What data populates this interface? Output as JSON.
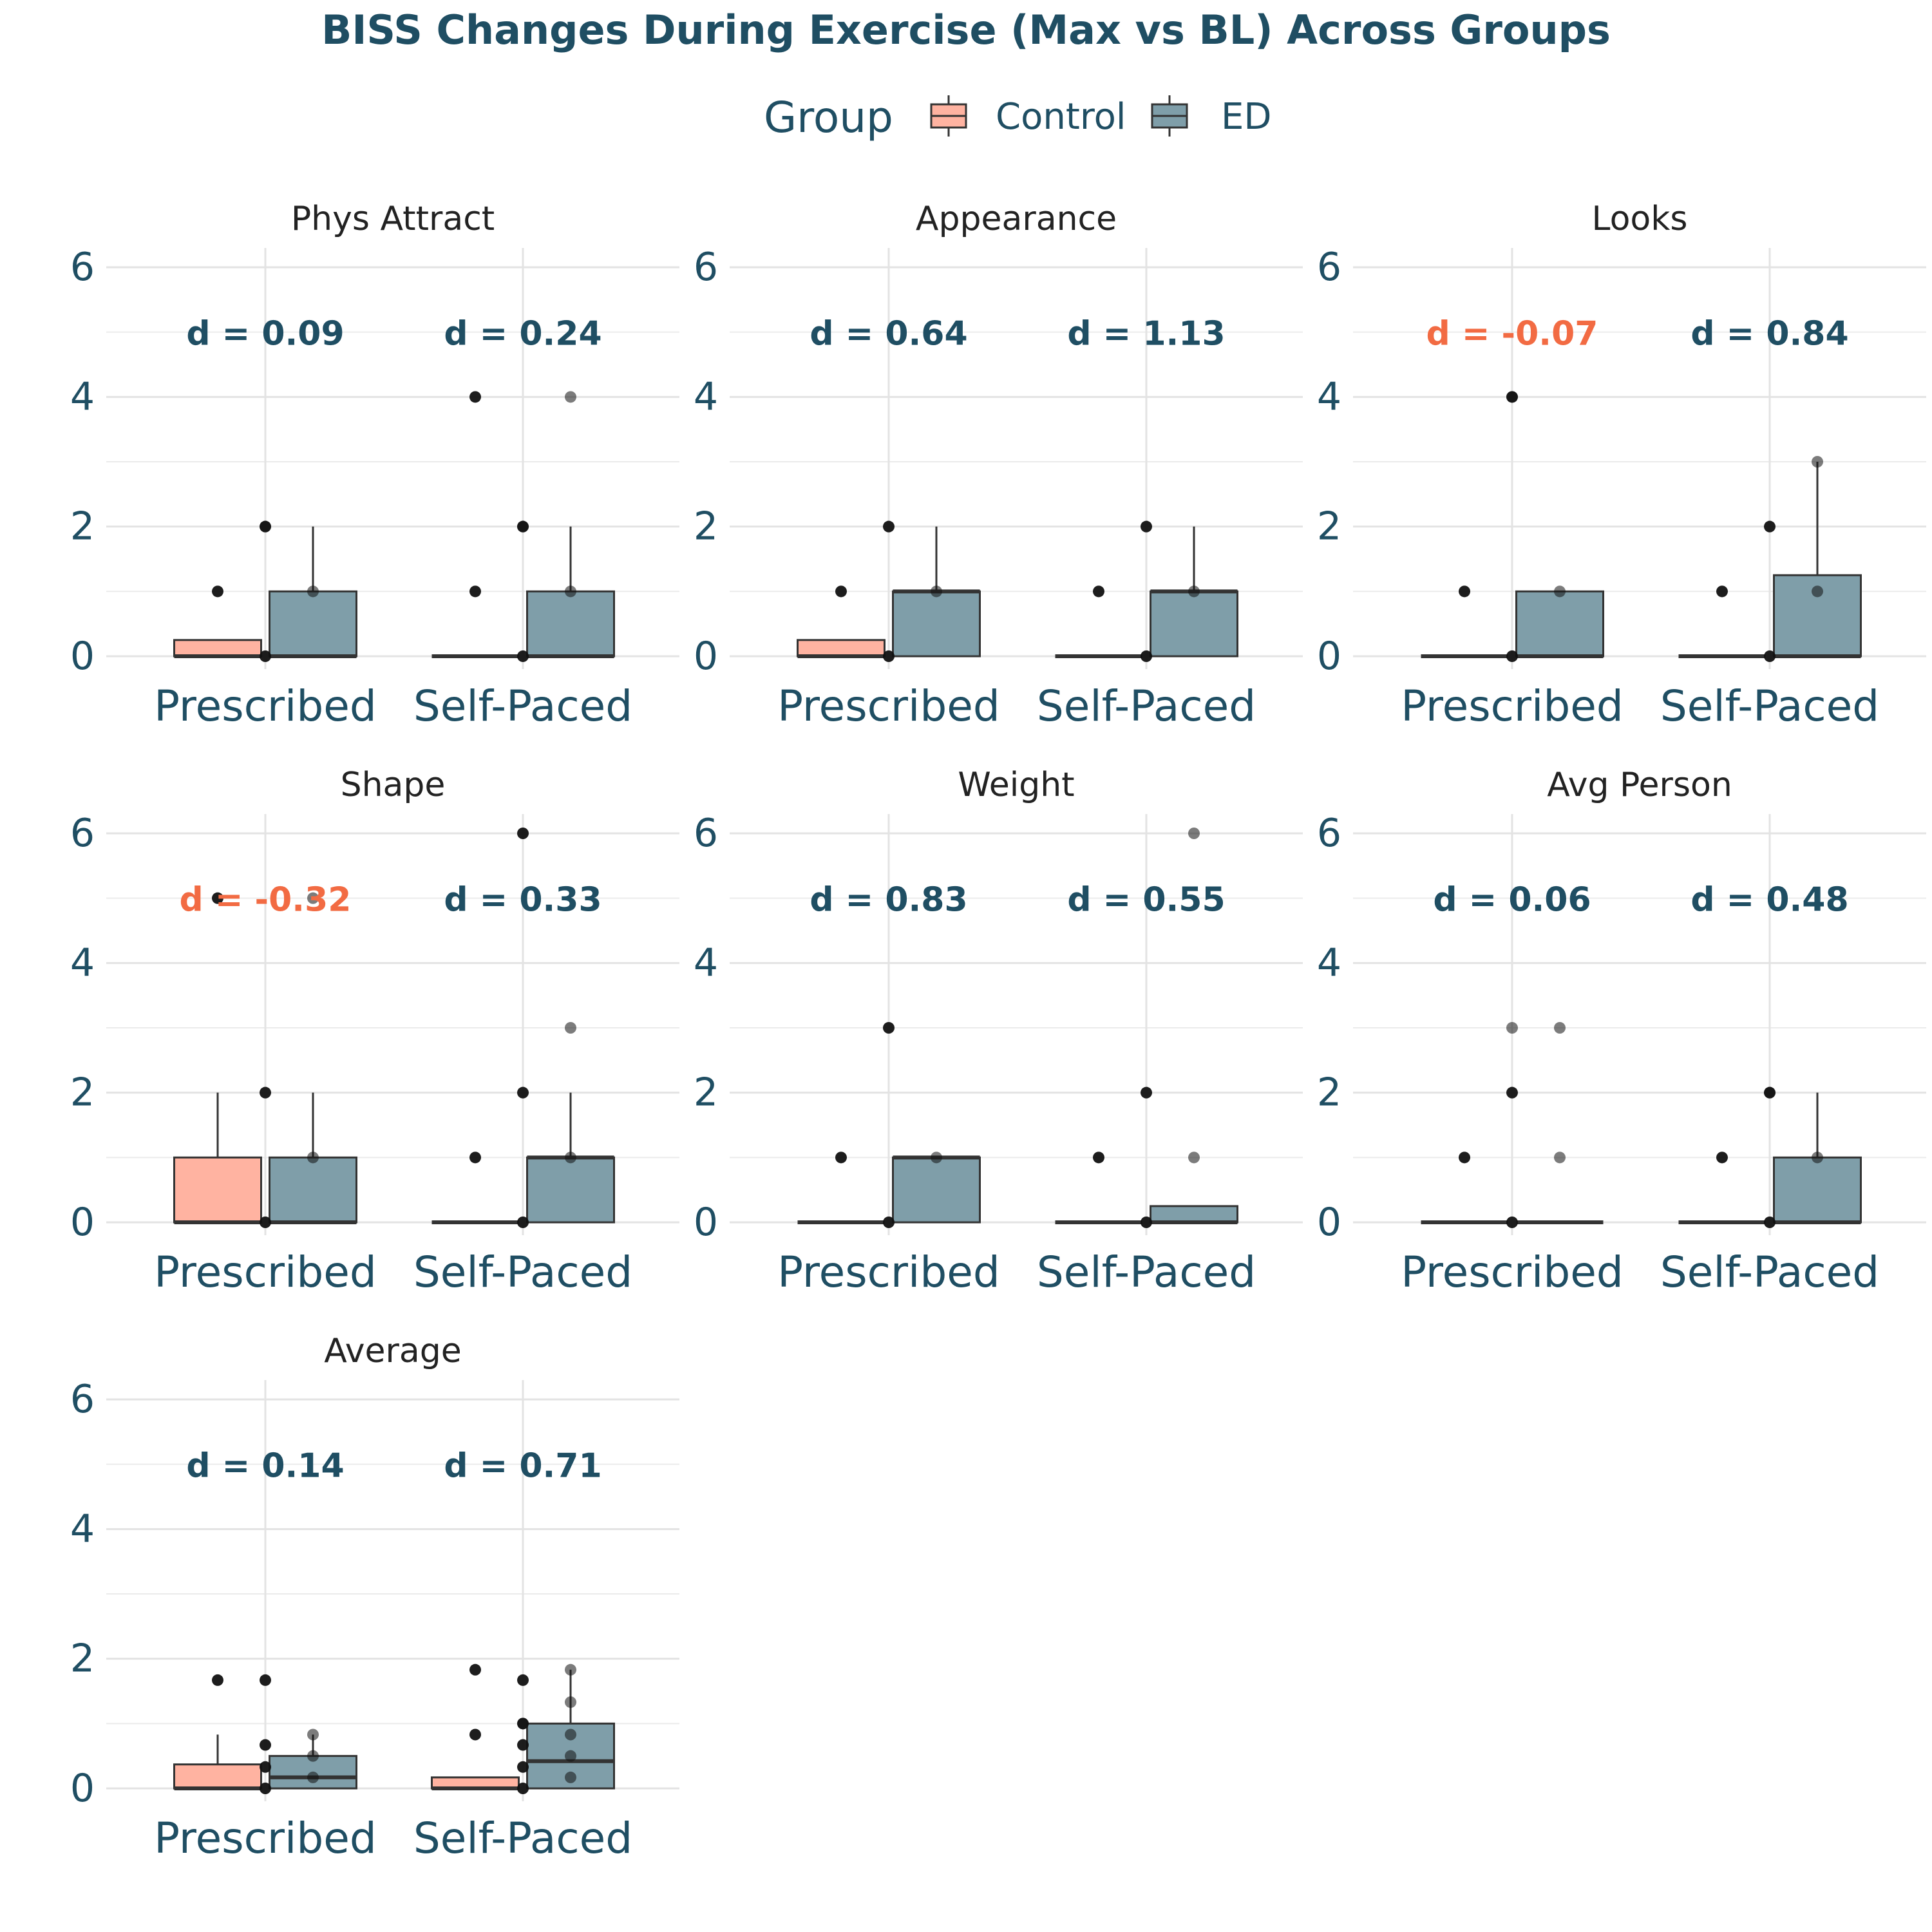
{
  "chart_data": {
    "type": "box",
    "title": "BISS Changes During Exercise (Max vs BL) Across Groups",
    "legend": {
      "title": "Group",
      "position": "top",
      "entries": [
        {
          "name": "Control",
          "color": "#f26b43"
        },
        {
          "name": "ED",
          "color": "#1f4e63"
        }
      ]
    },
    "categories": [
      "Prescribed",
      "Self-Paced"
    ],
    "ylim": [
      0,
      6
    ],
    "yticks": [
      "0",
      "2",
      "4",
      "6"
    ],
    "grid": true,
    "colors": {
      "control_fill": "#ffb3a1",
      "ed_fill": "#7f9ea9",
      "positive_label": "#1f4e63",
      "negative_label": "#f26b43",
      "box_stroke": "#333333",
      "point": "#111111"
    },
    "panels": [
      {
        "name": "Phys Attract",
        "effects": [
          {
            "label": "d = 0.09",
            "value": 0.09
          },
          {
            "label": "d = 0.24",
            "value": 0.24
          }
        ],
        "boxes": [
          {
            "category": "Prescribed",
            "group": "Control",
            "q1": 0,
            "median": 0,
            "q3": 0.25,
            "whisker_low": 0,
            "whisker_high": 0.25,
            "points": [
              1,
              2
            ]
          },
          {
            "category": "Prescribed",
            "group": "ED",
            "q1": 0,
            "median": 0,
            "q3": 1,
            "whisker_low": 0,
            "whisker_high": 2,
            "points": [
              0,
              1,
              2
            ]
          },
          {
            "category": "Self-Paced",
            "group": "Control",
            "q1": 0,
            "median": 0,
            "q3": 0,
            "whisker_low": 0,
            "whisker_high": 0,
            "points": [
              1,
              2,
              4
            ]
          },
          {
            "category": "Self-Paced",
            "group": "ED",
            "q1": 0,
            "median": 0,
            "q3": 1,
            "whisker_low": 0,
            "whisker_high": 2,
            "points": [
              0,
              1,
              2,
              4
            ]
          }
        ]
      },
      {
        "name": "Appearance",
        "effects": [
          {
            "label": "d = 0.64",
            "value": 0.64
          },
          {
            "label": "d = 1.13",
            "value": 1.13
          }
        ],
        "boxes": [
          {
            "category": "Prescribed",
            "group": "Control",
            "q1": 0,
            "median": 0,
            "q3": 0.25,
            "whisker_low": 0,
            "whisker_high": 0.25,
            "points": [
              1
            ]
          },
          {
            "category": "Prescribed",
            "group": "ED",
            "q1": 0,
            "median": 1,
            "q3": 1,
            "whisker_low": 0,
            "whisker_high": 2,
            "points": [
              0,
              1,
              2
            ]
          },
          {
            "category": "Self-Paced",
            "group": "Control",
            "q1": 0,
            "median": 0,
            "q3": 0,
            "whisker_low": 0,
            "whisker_high": 0,
            "points": [
              1
            ]
          },
          {
            "category": "Self-Paced",
            "group": "ED",
            "q1": 0,
            "median": 1,
            "q3": 1,
            "whisker_low": 0,
            "whisker_high": 2,
            "points": [
              0,
              1,
              2
            ]
          }
        ]
      },
      {
        "name": "Looks",
        "effects": [
          {
            "label": "d = -0.07",
            "value": -0.07
          },
          {
            "label": "d = 0.84",
            "value": 0.84
          }
        ],
        "boxes": [
          {
            "category": "Prescribed",
            "group": "Control",
            "q1": 0,
            "median": 0,
            "q3": 0,
            "whisker_low": 0,
            "whisker_high": 0,
            "points": [
              1,
              4
            ]
          },
          {
            "category": "Prescribed",
            "group": "ED",
            "q1": 0,
            "median": 0,
            "q3": 1,
            "whisker_low": 0,
            "whisker_high": 1,
            "points": [
              0,
              1,
              4
            ]
          },
          {
            "category": "Self-Paced",
            "group": "Control",
            "q1": 0,
            "median": 0,
            "q3": 0,
            "whisker_low": 0,
            "whisker_high": 0,
            "points": [
              1
            ]
          },
          {
            "category": "Self-Paced",
            "group": "ED",
            "q1": 0,
            "median": 0,
            "q3": 1.25,
            "whisker_low": 0,
            "whisker_high": 3,
            "points": [
              0,
              1,
              2,
              3
            ]
          }
        ]
      },
      {
        "name": "Shape",
        "effects": [
          {
            "label": "d = -0.32",
            "value": -0.32
          },
          {
            "label": "d = 0.33",
            "value": 0.33
          }
        ],
        "boxes": [
          {
            "category": "Prescribed",
            "group": "Control",
            "q1": 0,
            "median": 0,
            "q3": 1,
            "whisker_low": 0,
            "whisker_high": 2,
            "points": [
              5
            ]
          },
          {
            "category": "Prescribed",
            "group": "ED",
            "q1": 0,
            "median": 0,
            "q3": 1,
            "whisker_low": 0,
            "whisker_high": 2,
            "points": [
              0,
              1,
              2,
              5
            ]
          },
          {
            "category": "Self-Paced",
            "group": "Control",
            "q1": 0,
            "median": 0,
            "q3": 0,
            "whisker_low": 0,
            "whisker_high": 0,
            "points": [
              1
            ]
          },
          {
            "category": "Self-Paced",
            "group": "ED",
            "q1": 0,
            "median": 1,
            "q3": 1,
            "whisker_low": 0,
            "whisker_high": 2,
            "points": [
              0,
              1,
              2,
              3,
              6
            ]
          }
        ]
      },
      {
        "name": "Weight",
        "effects": [
          {
            "label": "d = 0.83",
            "value": 0.83
          },
          {
            "label": "d = 0.55",
            "value": 0.55
          }
        ],
        "boxes": [
          {
            "category": "Prescribed",
            "group": "Control",
            "q1": 0,
            "median": 0,
            "q3": 0,
            "whisker_low": 0,
            "whisker_high": 0,
            "points": [
              1
            ]
          },
          {
            "category": "Prescribed",
            "group": "ED",
            "q1": 0,
            "median": 1,
            "q3": 1,
            "whisker_low": 0,
            "whisker_high": 1,
            "points": [
              0,
              1,
              3
            ]
          },
          {
            "category": "Self-Paced",
            "group": "Control",
            "q1": 0,
            "median": 0,
            "q3": 0,
            "whisker_low": 0,
            "whisker_high": 0,
            "points": [
              1
            ]
          },
          {
            "category": "Self-Paced",
            "group": "ED",
            "q1": 0,
            "median": 0,
            "q3": 0.25,
            "whisker_low": 0,
            "whisker_high": 0.25,
            "points": [
              0,
              1,
              2,
              6
            ]
          }
        ]
      },
      {
        "name": "Avg Person",
        "effects": [
          {
            "label": "d = 0.06",
            "value": 0.06
          },
          {
            "label": "d = 0.48",
            "value": 0.48
          }
        ],
        "boxes": [
          {
            "category": "Prescribed",
            "group": "Control",
            "q1": 0,
            "median": 0,
            "q3": 0,
            "whisker_low": 0,
            "whisker_high": 0,
            "points": [
              1,
              3
            ]
          },
          {
            "category": "Prescribed",
            "group": "ED",
            "q1": 0,
            "median": 0,
            "q3": 0,
            "whisker_low": 0,
            "whisker_high": 0,
            "points": [
              0,
              1,
              2,
              3
            ]
          },
          {
            "category": "Self-Paced",
            "group": "Control",
            "q1": 0,
            "median": 0,
            "q3": 0,
            "whisker_low": 0,
            "whisker_high": 0,
            "points": [
              1,
              2
            ]
          },
          {
            "category": "Self-Paced",
            "group": "ED",
            "q1": 0,
            "median": 0,
            "q3": 1,
            "whisker_low": 0,
            "whisker_high": 2,
            "points": [
              0,
              1,
              2
            ]
          }
        ]
      },
      {
        "name": "Average",
        "effects": [
          {
            "label": "d = 0.14",
            "value": 0.14
          },
          {
            "label": "d = 0.71",
            "value": 0.71
          }
        ],
        "boxes": [
          {
            "category": "Prescribed",
            "group": "Control",
            "q1": 0,
            "median": 0,
            "q3": 0.37,
            "whisker_low": 0,
            "whisker_high": 0.83,
            "points": [
              1.67
            ]
          },
          {
            "category": "Prescribed",
            "group": "ED",
            "q1": 0,
            "median": 0.17,
            "q3": 0.5,
            "whisker_low": 0,
            "whisker_high": 0.83,
            "points": [
              0,
              0.17,
              0.33,
              0.5,
              0.67,
              0.83,
              1.67
            ]
          },
          {
            "category": "Self-Paced",
            "group": "Control",
            "q1": 0,
            "median": 0,
            "q3": 0.17,
            "whisker_low": 0,
            "whisker_high": 0.17,
            "points": [
              0.83,
              1,
              1.83
            ]
          },
          {
            "category": "Self-Paced",
            "group": "ED",
            "q1": 0,
            "median": 0.42,
            "q3": 1,
            "whisker_low": 0,
            "whisker_high": 1.83,
            "points": [
              0,
              0.17,
              0.33,
              0.5,
              0.67,
              0.83,
              1,
              1.33,
              1.67,
              1.83
            ]
          }
        ]
      }
    ]
  }
}
